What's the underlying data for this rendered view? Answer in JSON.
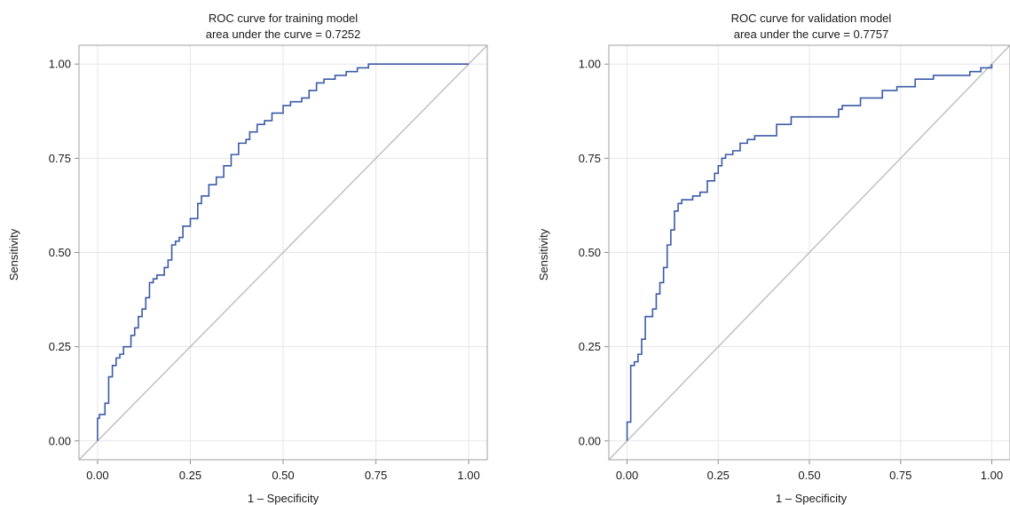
{
  "chart_data": [
    {
      "type": "line",
      "title_line1": "ROC curve for training model",
      "title_line2": "area under the curve = 0.7252",
      "xlabel": "1 – Specificity",
      "ylabel": "Sensitivity",
      "xlim": [
        -0.05,
        1.05
      ],
      "ylim": [
        -0.05,
        1.05
      ],
      "xticks": [
        "0.00",
        "0.25",
        "0.50",
        "0.75",
        "1.00"
      ],
      "yticks": [
        "0.00",
        "0.25",
        "0.50",
        "0.75",
        "1.00"
      ],
      "grid": true,
      "line_color": "#3a5ba8",
      "reference_color": "#bdbdbd",
      "series": [
        {
          "x": [
            0.0,
            0.0,
            0.005,
            0.005,
            0.02,
            0.02,
            0.03,
            0.03,
            0.04,
            0.04,
            0.05,
            0.05,
            0.06,
            0.06,
            0.07,
            0.07,
            0.09,
            0.09,
            0.1,
            0.1,
            0.11,
            0.11,
            0.12,
            0.12,
            0.13,
            0.13,
            0.14,
            0.14,
            0.15,
            0.15,
            0.16,
            0.16,
            0.18,
            0.18,
            0.19,
            0.19,
            0.2,
            0.2,
            0.21,
            0.21,
            0.22,
            0.22,
            0.23,
            0.23,
            0.25,
            0.25,
            0.27,
            0.27,
            0.28,
            0.28,
            0.3,
            0.3,
            0.32,
            0.32,
            0.34,
            0.34,
            0.36,
            0.36,
            0.38,
            0.38,
            0.4,
            0.4,
            0.41,
            0.41,
            0.43,
            0.43,
            0.45,
            0.45,
            0.47,
            0.47,
            0.5,
            0.5,
            0.52,
            0.52,
            0.55,
            0.55,
            0.57,
            0.57,
            0.59,
            0.59,
            0.61,
            0.61,
            0.64,
            0.64,
            0.67,
            0.67,
            0.7,
            0.7,
            0.73,
            0.73,
            0.8,
            0.8,
            0.84,
            0.84,
            0.92,
            0.92,
            0.96,
            0.96,
            1.0
          ],
          "y": [
            0.0,
            0.06,
            0.06,
            0.07,
            0.07,
            0.1,
            0.1,
            0.17,
            0.17,
            0.2,
            0.2,
            0.22,
            0.22,
            0.23,
            0.23,
            0.25,
            0.25,
            0.28,
            0.28,
            0.3,
            0.3,
            0.33,
            0.33,
            0.35,
            0.35,
            0.38,
            0.38,
            0.42,
            0.42,
            0.43,
            0.43,
            0.44,
            0.44,
            0.46,
            0.46,
            0.48,
            0.48,
            0.52,
            0.52,
            0.53,
            0.53,
            0.54,
            0.54,
            0.57,
            0.57,
            0.59,
            0.59,
            0.63,
            0.63,
            0.65,
            0.65,
            0.68,
            0.68,
            0.7,
            0.7,
            0.73,
            0.73,
            0.76,
            0.76,
            0.79,
            0.79,
            0.8,
            0.8,
            0.82,
            0.82,
            0.84,
            0.84,
            0.85,
            0.85,
            0.87,
            0.87,
            0.89,
            0.89,
            0.9,
            0.9,
            0.91,
            0.91,
            0.93,
            0.93,
            0.95,
            0.95,
            0.96,
            0.96,
            0.97,
            0.97,
            0.98,
            0.98,
            0.99,
            0.99,
            1.0,
            1.0,
            1.0,
            1.0,
            1.0,
            1.0,
            1.0,
            1.0,
            1.0,
            1.0
          ]
        }
      ]
    },
    {
      "type": "line",
      "title_line1": "ROC curve for validation model",
      "title_line2": "area under the curve = 0.7757",
      "xlabel": "1 – Specificity",
      "ylabel": "Sensitivity",
      "xlim": [
        -0.05,
        1.05
      ],
      "ylim": [
        -0.05,
        1.05
      ],
      "xticks": [
        "0.00",
        "0.25",
        "0.50",
        "0.75",
        "1.00"
      ],
      "yticks": [
        "0.00",
        "0.25",
        "0.50",
        "0.75",
        "1.00"
      ],
      "grid": true,
      "line_color": "#3a5ba8",
      "reference_color": "#bdbdbd",
      "series": [
        {
          "x": [
            0.0,
            0.0,
            0.01,
            0.01,
            0.02,
            0.02,
            0.03,
            0.03,
            0.04,
            0.04,
            0.05,
            0.05,
            0.07,
            0.07,
            0.08,
            0.08,
            0.09,
            0.09,
            0.1,
            0.1,
            0.11,
            0.11,
            0.12,
            0.12,
            0.13,
            0.13,
            0.14,
            0.14,
            0.15,
            0.15,
            0.18,
            0.18,
            0.2,
            0.2,
            0.22,
            0.22,
            0.24,
            0.24,
            0.25,
            0.25,
            0.26,
            0.26,
            0.27,
            0.27,
            0.29,
            0.29,
            0.31,
            0.31,
            0.33,
            0.33,
            0.35,
            0.35,
            0.36,
            0.36,
            0.41,
            0.41,
            0.45,
            0.45,
            0.58,
            0.58,
            0.59,
            0.59,
            0.64,
            0.64,
            0.7,
            0.7,
            0.74,
            0.74,
            0.79,
            0.79,
            0.84,
            0.84,
            0.94,
            0.94,
            0.97,
            0.97,
            1.0,
            1.0
          ],
          "y": [
            0.0,
            0.05,
            0.05,
            0.2,
            0.2,
            0.21,
            0.21,
            0.23,
            0.23,
            0.27,
            0.27,
            0.33,
            0.33,
            0.35,
            0.35,
            0.39,
            0.39,
            0.42,
            0.42,
            0.46,
            0.46,
            0.52,
            0.52,
            0.56,
            0.56,
            0.61,
            0.61,
            0.63,
            0.63,
            0.64,
            0.64,
            0.65,
            0.65,
            0.66,
            0.66,
            0.69,
            0.69,
            0.71,
            0.71,
            0.73,
            0.73,
            0.75,
            0.75,
            0.76,
            0.76,
            0.77,
            0.77,
            0.79,
            0.79,
            0.8,
            0.8,
            0.81,
            0.81,
            0.81,
            0.81,
            0.84,
            0.84,
            0.86,
            0.86,
            0.88,
            0.88,
            0.89,
            0.89,
            0.91,
            0.91,
            0.93,
            0.93,
            0.94,
            0.94,
            0.96,
            0.96,
            0.97,
            0.97,
            0.98,
            0.98,
            0.99,
            0.99,
            1.0
          ]
        }
      ]
    }
  ]
}
